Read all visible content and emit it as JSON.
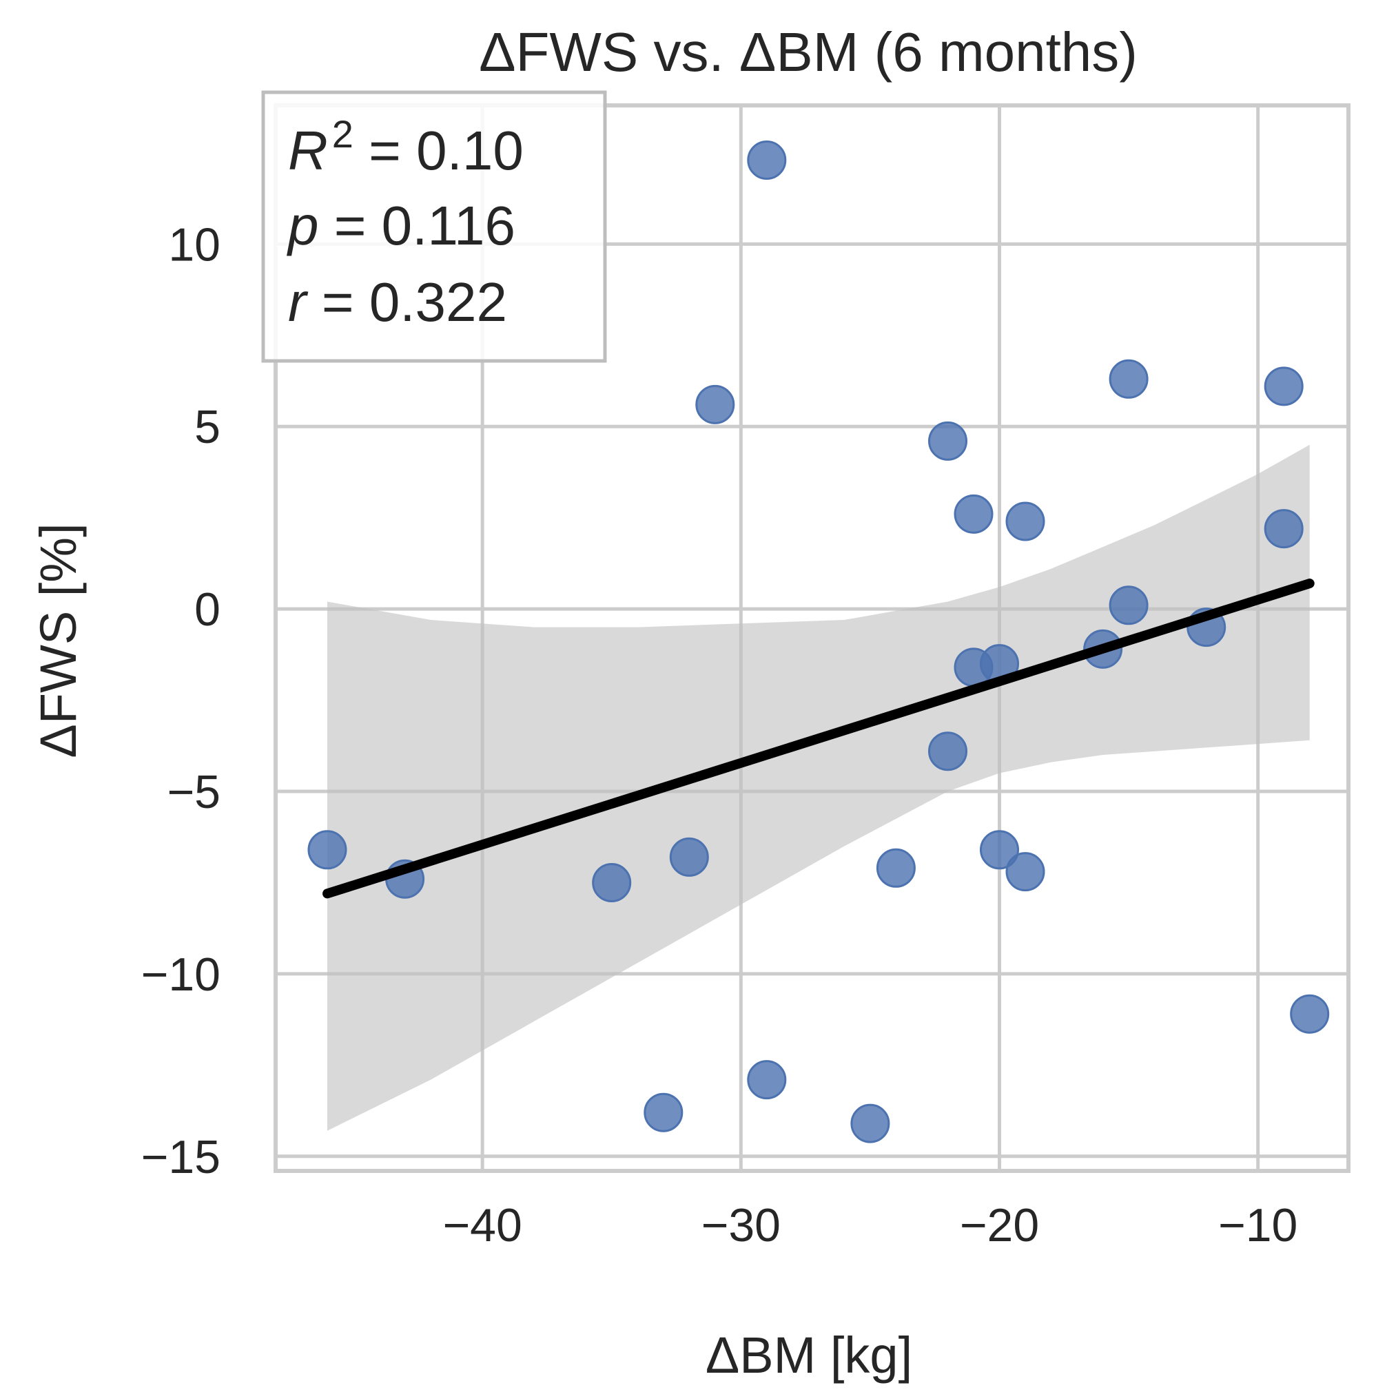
{
  "chart_data": {
    "type": "scatter",
    "title": "ΔFWS vs. ΔBM (6 months)",
    "xlabel": "ΔBM [kg]",
    "ylabel": "ΔFWS [%]",
    "xlim": [
      -48,
      -6.5
    ],
    "ylim": [
      -15.4,
      13.8
    ],
    "xticks": [
      -40,
      -30,
      -20,
      -10
    ],
    "xtick_labels": [
      "−40",
      "−30",
      "−20",
      "−10"
    ],
    "yticks": [
      -15,
      -10,
      -5,
      0,
      5,
      10
    ],
    "ytick_labels": [
      "−15",
      "−10",
      "−5",
      "0",
      "5",
      "10"
    ],
    "grid": true,
    "points": [
      {
        "x": -46,
        "y": -6.6
      },
      {
        "x": -43,
        "y": -7.4
      },
      {
        "x": -35,
        "y": -7.5
      },
      {
        "x": -33,
        "y": -13.8
      },
      {
        "x": -32,
        "y": -6.8
      },
      {
        "x": -31,
        "y": 5.6
      },
      {
        "x": -29,
        "y": 12.3
      },
      {
        "x": -29,
        "y": -12.9
      },
      {
        "x": -25,
        "y": -14.1
      },
      {
        "x": -24,
        "y": -7.1
      },
      {
        "x": -22,
        "y": 4.6
      },
      {
        "x": -22,
        "y": -3.9
      },
      {
        "x": -21,
        "y": 2.6
      },
      {
        "x": -21,
        "y": -1.6
      },
      {
        "x": -20,
        "y": -1.5
      },
      {
        "x": -20,
        "y": -6.6
      },
      {
        "x": -19,
        "y": 2.4
      },
      {
        "x": -19,
        "y": -7.2
      },
      {
        "x": -16,
        "y": -1.1
      },
      {
        "x": -15,
        "y": 6.3
      },
      {
        "x": -15,
        "y": 0.1
      },
      {
        "x": -12,
        "y": -0.5
      },
      {
        "x": -9,
        "y": 6.1
      },
      {
        "x": -9,
        "y": 2.2
      },
      {
        "x": -8,
        "y": -11.1
      }
    ],
    "regression": {
      "x": [
        -46,
        -8
      ],
      "y": [
        -7.8,
        0.7
      ]
    },
    "confidence_band": {
      "x": [
        -46,
        -42,
        -38,
        -34,
        -30,
        -26,
        -22,
        -20,
        -18,
        -16,
        -14,
        -12,
        -10,
        -8
      ],
      "upper": [
        0.2,
        -0.3,
        -0.5,
        -0.5,
        -0.4,
        -0.3,
        0.2,
        0.6,
        1.1,
        1.7,
        2.3,
        3.0,
        3.7,
        4.5
      ],
      "lower": [
        -14.3,
        -12.9,
        -11.3,
        -9.7,
        -8.1,
        -6.5,
        -5.0,
        -4.5,
        -4.2,
        -4.0,
        -3.9,
        -3.8,
        -3.7,
        -3.6
      ]
    },
    "stats": {
      "r2_symbol": "R",
      "r2_exp": "2",
      "r2_value": " = 0.10",
      "p_symbol": "p",
      "p_value": " = 0.116",
      "r_symbol": "r",
      "r_value": " = 0.322",
      "position": "top-left"
    },
    "colors": {
      "point": "#4c72b0",
      "line": "#000000",
      "band": "#bfbfbf",
      "grid": "#cccccc",
      "frame": "#cccccc",
      "text": "#262626"
    }
  }
}
